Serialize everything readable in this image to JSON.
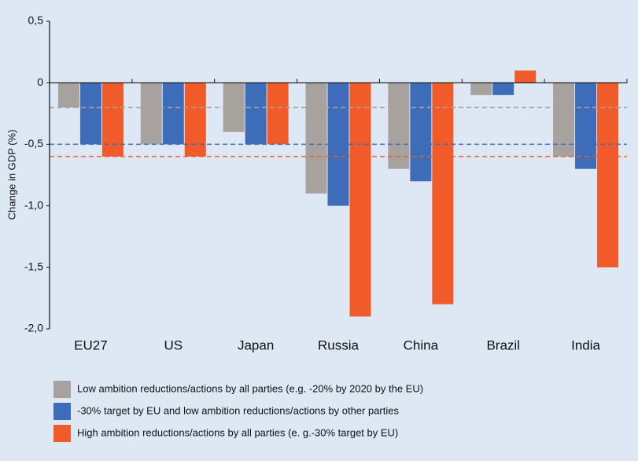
{
  "chart_data": {
    "type": "bar",
    "ylabel": "Change in GDP (%)",
    "categories": [
      "EU27",
      "US",
      "Japan",
      "Russia",
      "China",
      "Brazil",
      "India"
    ],
    "series": [
      {
        "name": "Low ambition reductions/actions by all parties (e.g. -20% by 2020 by the EU)",
        "color": "#a8a29e",
        "values": [
          -0.2,
          -0.5,
          -0.4,
          -0.9,
          -0.7,
          -0.1,
          -0.6
        ]
      },
      {
        "name": "-30% target by EU and low ambition reductions/actions by other parties",
        "color": "#3d6db9",
        "values": [
          -0.5,
          -0.5,
          -0.5,
          -1.0,
          -0.8,
          -0.1,
          -0.7
        ]
      },
      {
        "name": "High ambition reductions/actions by all parties (e. g.-30% target by EU)",
        "color": "#f15a29",
        "values": [
          -0.6,
          -0.6,
          -0.5,
          -1.9,
          -1.8,
          0.1,
          -1.5
        ]
      }
    ],
    "ylim": [
      -2.0,
      0.5
    ],
    "yticks": [
      {
        "value": 0.5,
        "label": "0,5"
      },
      0,
      {
        "value": -0.5,
        "label": "-0,5"
      },
      {
        "value": -1.0,
        "label": "-1,0"
      },
      {
        "value": -1.5,
        "label": "-1,5"
      },
      {
        "value": -2.0,
        "label": "-2,0"
      }
    ],
    "legend": "bottom"
  }
}
